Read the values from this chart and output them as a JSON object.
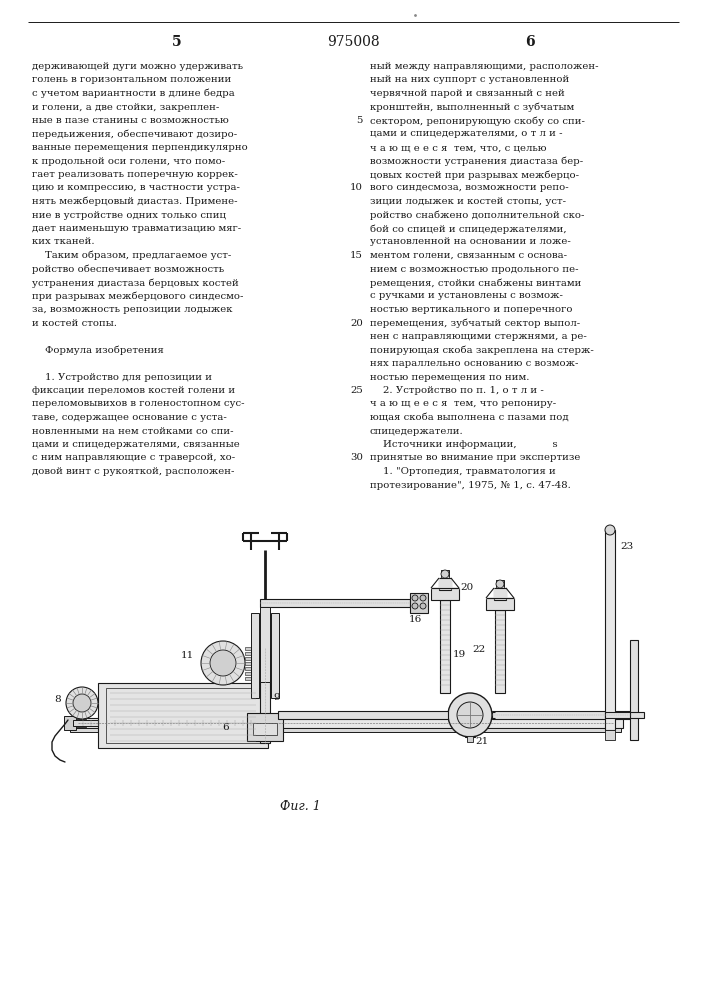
{
  "page_number_left": "5",
  "page_number_center": "975008",
  "page_number_right": "6",
  "left_col_lines": [
    "держивающей дуги можно удерживать",
    "голень в горизонтальном положении",
    "с учетом вариантности в длине бедра",
    "и голени, а две стойки, закреплен-",
    "ные в пазе станины с возможностью",
    "передьижения, обеспечивают дозиро-",
    "ванные перемещения перпендикулярно",
    "к продольной оси голени, что помо-",
    "гает реализовать поперечную коррек-",
    "цию и компрессию, в частности устра-",
    "нять межберцовый диастаз. Примене-",
    "ние в устройстве одних только спиц",
    "дает наименьшую травматизацию мяг-",
    "ких тканей.",
    "    Таким образом, предлагаемое уст-",
    "ройство обеспечивает возможность",
    "устранения диастаза берцовых костей",
    "при разрывах межберцового синдесмо-",
    "за, возможность репозиции лодыжек",
    "и костей стопы.",
    "",
    "    Формула изобретения",
    "",
    "    1. Устройство для репозиции и",
    "фиксации переломов костей голени и",
    "переломовывихов в голеностопном сус-",
    "таве, содержащее основание с уста-",
    "новленными на нем стойками со спи-",
    "цами и спицедержателями, связанные",
    "с ним направляющие с траверсой, хо-",
    "довой винт с рукояткой, расположен-"
  ],
  "right_col_lines": [
    "ный между направляющими, расположен-",
    "ный на них суппорт с установленной",
    "червячной парой и связанный с ней",
    "кронштейн, выполненный с зубчатым",
    "сектором, репонирующую скобу со спи-",
    "цами и спицедержателями, о т л и -",
    "ч а ю щ е е с я  тем, что, с целью",
    "возможности устранения диастаза бер-",
    "цовых костей при разрывах межберцо-",
    "вого синдесмоза, возможности репо-",
    "зиции лодыжек и костей стопы, уст-",
    "ройство снабжено дополнительной ско-",
    "бой со спицей и спицедержателями,",
    "установленной на основании и ложе-",
    "ментом голени, связанным с основа-",
    "нием с возможностью продольного пе-",
    "ремещения, стойки снабжены винтами",
    "с ручками и установлены с возмож-",
    "ностью вертикального и поперечного",
    "перемещения, зубчатый сектор выпол-",
    "нен с направляющими стержнями, а ре-",
    "понирующая скоба закреплена на стерж-",
    "нях параллельно основанию с возмож-",
    "ностью перемещения по ним.",
    "    2. Устройство по п. 1, о т л и -",
    "ч а ю щ е е с я  тем, что репониру-",
    "ющая скоба выполнена с пазами под",
    "спицедержатели.",
    "    Источники информации,           ѕ",
    "принятые во внимание при экспертизе",
    "    1. \"Ортопедия, травматология и",
    "протезирование\", 1975, № 1, с. 47-48."
  ],
  "right_line_numbers": {
    "4": "5",
    "9": "10",
    "14": "15",
    "19": "20",
    "24": "25",
    "29": "30"
  },
  "fig_caption": "Фиг. 1",
  "bg": "#ffffff",
  "ink": "#1a1a1a"
}
